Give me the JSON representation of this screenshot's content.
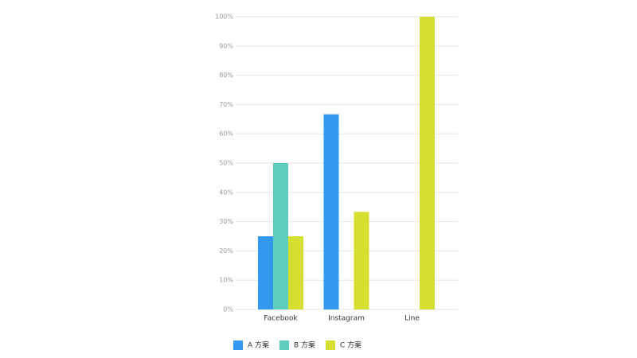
{
  "chart_data": {
    "type": "bar",
    "categories": [
      "Facebook",
      "Instagram",
      "Line"
    ],
    "series": [
      {
        "name": "A 方案",
        "color": "#3399f0",
        "values": [
          25,
          66.67,
          0
        ]
      },
      {
        "name": "B 方案",
        "color": "#5ecdc0",
        "values": [
          50,
          0,
          0
        ]
      },
      {
        "name": "C 方案",
        "color": "#d4df32",
        "values": [
          25,
          33.33,
          100
        ]
      }
    ],
    "ylim": [
      0,
      100
    ],
    "yticks": [
      {
        "value": 0,
        "label": "0%"
      },
      {
        "value": 10,
        "label": "10%"
      },
      {
        "value": 20,
        "label": "20%"
      },
      {
        "value": 30,
        "label": "30%"
      },
      {
        "value": 40,
        "label": "40%"
      },
      {
        "value": 50,
        "label": "50%"
      },
      {
        "value": 60,
        "label": "60%"
      },
      {
        "value": 70,
        "label": "70%"
      },
      {
        "value": 80,
        "label": "80%"
      },
      {
        "value": 90,
        "label": "90%"
      },
      {
        "value": 100,
        "label": "100%"
      }
    ],
    "grid": true,
    "legend": "bottom"
  }
}
